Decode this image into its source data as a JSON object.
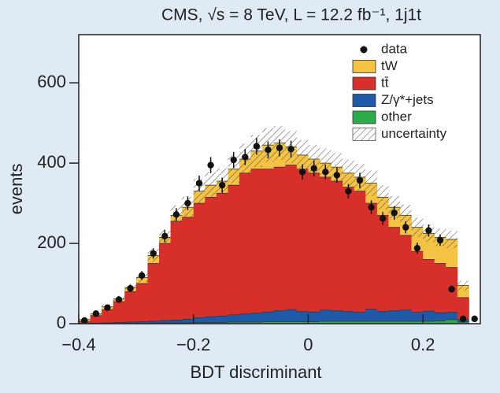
{
  "chart_data": {
    "type": "histogram",
    "title": "CMS, √s = 8 TeV, L = 12.2 fb⁻¹, 1j1t",
    "xlabel": "BDT discriminant",
    "ylabel": "events",
    "xlim": [
      -0.4,
      0.3
    ],
    "ylim": [
      0,
      720
    ],
    "xticks": [
      {
        "value": -0.4,
        "label": "−0.4"
      },
      {
        "value": -0.2,
        "label": "−0.2"
      },
      0,
      0.2
    ],
    "yticks": [
      0,
      200,
      400,
      600
    ],
    "legend": "upper right",
    "stacked": true,
    "bins": [
      -0.4,
      -0.38,
      -0.36,
      -0.34,
      -0.32,
      -0.3,
      -0.28,
      -0.26,
      -0.24,
      -0.22,
      -0.2,
      -0.18,
      -0.16,
      -0.14,
      -0.12,
      -0.1,
      -0.08,
      -0.06,
      -0.04,
      -0.02,
      0,
      0.02,
      0.04,
      0.06,
      0.08,
      0.1,
      0.12,
      0.14,
      0.16,
      0.18,
      0.2,
      0.22,
      0.24,
      0.26,
      0.28,
      0.3
    ],
    "series": [
      {
        "name": "other",
        "color": "#2bab4a",
        "values": [
          0,
          0,
          0,
          0,
          1,
          1,
          1,
          2,
          2,
          2,
          3,
          3,
          3,
          4,
          4,
          4,
          5,
          5,
          5,
          5,
          5,
          6,
          6,
          6,
          6,
          6,
          6,
          6,
          6,
          6,
          6,
          7,
          10,
          4,
          0
        ]
      },
      {
        "name": "Z/γ*+jets",
        "color": "#1f5aa8",
        "values": [
          1,
          1,
          2,
          3,
          3,
          4,
          5,
          6,
          7,
          9,
          12,
          14,
          16,
          18,
          20,
          22,
          24,
          27,
          30,
          25,
          24,
          28,
          26,
          24,
          22,
          30,
          24,
          26,
          28,
          22,
          25,
          20,
          18,
          6,
          0
        ]
      },
      {
        "name": "tt̄",
        "color": "#d7302a",
        "values": [
          4,
          19,
          33,
          52,
          76,
          95,
          144,
          192,
          246,
          254,
          285,
          298,
          306,
          323,
          351,
          359,
          356,
          358,
          360,
          355,
          346,
          331,
          323,
          310,
          302,
          264,
          240,
          208,
          186,
          152,
          129,
          123,
          112,
          55,
          0
        ]
      },
      {
        "name": "tW",
        "color": "#f4c343",
        "values": [
          5,
          5,
          7,
          7,
          10,
          15,
          20,
          15,
          15,
          25,
          30,
          30,
          30,
          40,
          35,
          45,
          60,
          60,
          45,
          35,
          35,
          35,
          35,
          35,
          35,
          50,
          45,
          50,
          50,
          60,
          65,
          65,
          70,
          30,
          0
        ]
      }
    ],
    "data": {
      "name": "data",
      "color": "#111111",
      "values": [
        8,
        25,
        40,
        60,
        88,
        120,
        175,
        218,
        272,
        300,
        350,
        395,
        345,
        408,
        415,
        442,
        433,
        438,
        435,
        378,
        387,
        378,
        370,
        330,
        357,
        290,
        262,
        276,
        240,
        188,
        232,
        208,
        86,
        12,
        12
      ],
      "errors": [
        3,
        5,
        6,
        8,
        9,
        11,
        13,
        15,
        16,
        17,
        19,
        20,
        19,
        20,
        20,
        21,
        21,
        21,
        21,
        19,
        20,
        19,
        19,
        18,
        19,
        17,
        16,
        17,
        15,
        14,
        15,
        14,
        9,
        3,
        3
      ]
    },
    "uncertainty": {
      "name": "uncertainty",
      "values": [
        2,
        4,
        6,
        8,
        10,
        12,
        16,
        20,
        24,
        26,
        30,
        32,
        32,
        35,
        38,
        40,
        42,
        42,
        40,
        38,
        36,
        36,
        35,
        34,
        33,
        32,
        30,
        28,
        26,
        24,
        22,
        22,
        22,
        12,
        0
      ]
    }
  }
}
